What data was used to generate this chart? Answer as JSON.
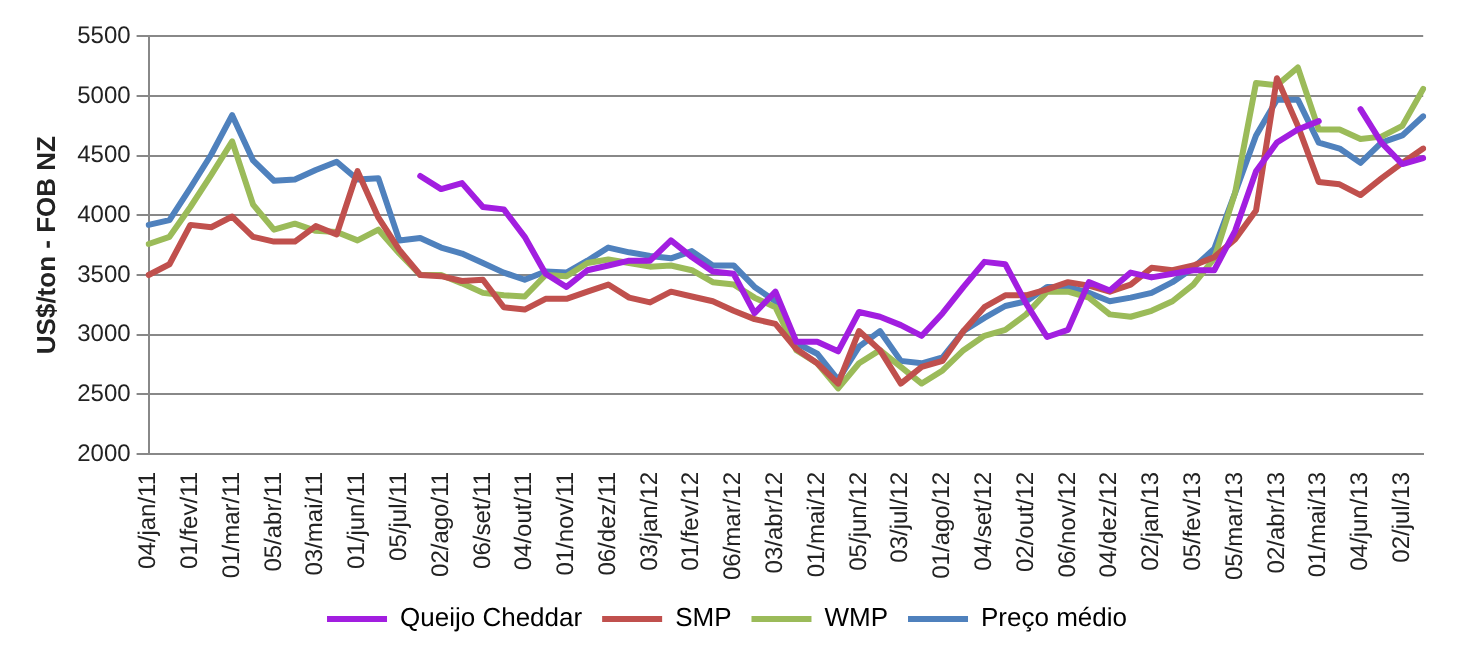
{
  "chart_data": {
    "type": "line",
    "ylabel": "US$/ton - FOB NZ",
    "categories": [
      "04/jan/11",
      null,
      "01/fev/11",
      null,
      "01/mar/11",
      null,
      "05/abr/11",
      null,
      "03/mai/11",
      null,
      "01/jun/11",
      null,
      "05/jul/11",
      null,
      "02/ago/11",
      null,
      "06/set/11",
      null,
      "04/out/11",
      null,
      "01/nov/11",
      null,
      "06/dez/11",
      null,
      "03/jan/12",
      null,
      "01/fev/12",
      null,
      "06/mar/12",
      null,
      "03/abr/12",
      null,
      "01/mai/12",
      null,
      "05/jun/12",
      null,
      "03/jul/12",
      null,
      "01/ago/12",
      null,
      "04/set/12",
      null,
      "02/out/12",
      null,
      "06/nov/12",
      null,
      "04/dez/12",
      null,
      "02/jan/13",
      null,
      "05/fev/13",
      null,
      "05/mar/13",
      null,
      "02/abr/13",
      null,
      "01/mai/13",
      null,
      "04/jun/13",
      null,
      "02/jul/13",
      null
    ],
    "series": [
      {
        "name": "Queijo Cheddar",
        "color": "#a21ee0",
        "values": [
          null,
          null,
          null,
          null,
          null,
          null,
          null,
          null,
          null,
          null,
          null,
          null,
          null,
          4330,
          4220,
          4270,
          4070,
          4050,
          3820,
          3510,
          3400,
          3540,
          3580,
          3620,
          3620,
          3790,
          3650,
          3530,
          3510,
          3180,
          3360,
          2940,
          2940,
          2860,
          3190,
          3150,
          3080,
          2990,
          3180,
          3400,
          3610,
          3590,
          3260,
          2980,
          3040,
          3440,
          3370,
          3520,
          3480,
          3510,
          3540,
          3540,
          3870,
          4370,
          4610,
          4720,
          4790,
          null,
          4890,
          4610,
          4430,
          4480
        ]
      },
      {
        "name": "SMP",
        "color": "#c0504d",
        "values": [
          3500,
          3590,
          3920,
          3900,
          3990,
          3820,
          3780,
          3780,
          3910,
          3840,
          4370,
          3980,
          3710,
          3500,
          3490,
          3450,
          3460,
          3230,
          3210,
          3300,
          3300,
          3360,
          3420,
          3310,
          3270,
          3360,
          3320,
          3280,
          3200,
          3130,
          3090,
          2880,
          2760,
          2590,
          3030,
          2870,
          2590,
          2730,
          2780,
          3030,
          3230,
          3330,
          3330,
          3380,
          3440,
          3410,
          3360,
          3420,
          3560,
          3540,
          3580,
          3650,
          3800,
          4040,
          5150,
          4750,
          4280,
          4260,
          4170,
          4310,
          4440,
          4560
        ]
      },
      {
        "name": "WMP",
        "color": "#9bbb59",
        "values": [
          3760,
          3820,
          4070,
          4340,
          4620,
          4090,
          3880,
          3930,
          3870,
          3860,
          3790,
          3880,
          3680,
          3500,
          3500,
          3430,
          3350,
          3330,
          3320,
          3500,
          3490,
          3600,
          3630,
          3600,
          3570,
          3580,
          3540,
          3440,
          3420,
          3310,
          3230,
          2870,
          2760,
          2550,
          2760,
          2870,
          2730,
          2590,
          2700,
          2870,
          2990,
          3040,
          3170,
          3360,
          3360,
          3310,
          3170,
          3150,
          3200,
          3280,
          3420,
          3640,
          4190,
          5110,
          5090,
          5240,
          4720,
          4720,
          4640,
          4660,
          4750,
          5060
        ]
      },
      {
        "name": "Preço médio",
        "color": "#4f81bd",
        "values": [
          3920,
          3960,
          4230,
          4510,
          4840,
          4460,
          4290,
          4300,
          4380,
          4450,
          4300,
          4310,
          3790,
          3810,
          3730,
          3680,
          3600,
          3520,
          3460,
          3530,
          3520,
          3620,
          3730,
          3690,
          3660,
          3640,
          3700,
          3580,
          3580,
          3400,
          3280,
          2930,
          2840,
          2620,
          2900,
          3030,
          2780,
          2760,
          2810,
          3030,
          3140,
          3240,
          3280,
          3400,
          3400,
          3350,
          3280,
          3310,
          3350,
          3440,
          3560,
          3720,
          4190,
          4670,
          4970,
          4970,
          4610,
          4560,
          4440,
          4610,
          4670,
          4830
        ]
      }
    ],
    "ylim": [
      2000,
      5500
    ],
    "yticks": [
      2000,
      2500,
      3000,
      3500,
      4000,
      4500,
      5000,
      5500
    ],
    "grid": "y",
    "legend": "bottom",
    "marker": "none",
    "line_style": "solid"
  }
}
